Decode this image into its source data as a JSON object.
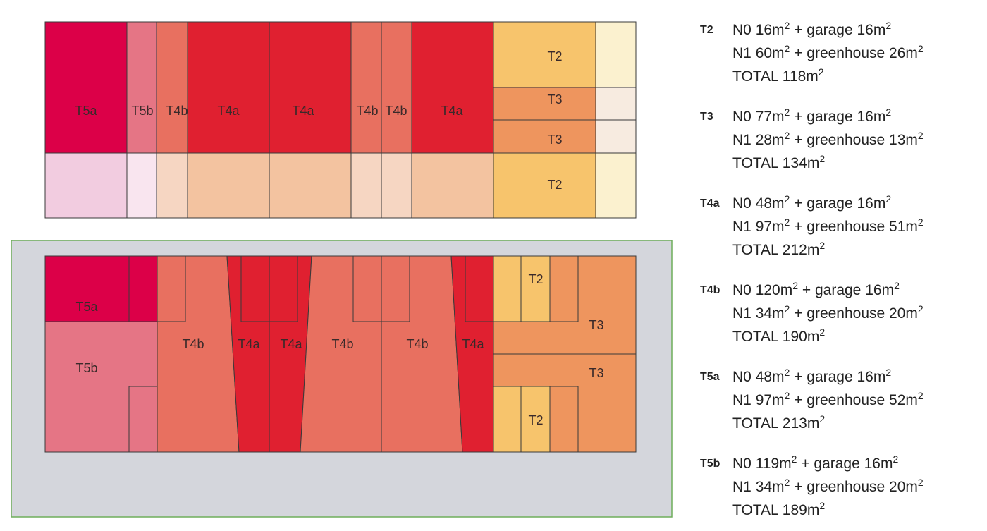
{
  "legend": [
    {
      "code": "T2",
      "n0": "16",
      "n0_extra": "garage 16",
      "n1": "60",
      "n1_extra": "greenhouse 26",
      "total": "118"
    },
    {
      "code": "T3",
      "n0": "77",
      "n0_extra": "garage 16",
      "n1": "28",
      "n1_extra": "greenhouse 13",
      "total": "134"
    },
    {
      "code": "T4a",
      "n0": "48",
      "n0_extra": "garage 16",
      "n1": "97",
      "n1_extra": "greenhouse 51",
      "total": "212"
    },
    {
      "code": "T4b",
      "n0": "120",
      "n0_extra": "garage 16",
      "n1": "34",
      "n1_extra": "greenhouse 20",
      "total": "190"
    },
    {
      "code": "T5a",
      "n0": "48",
      "n0_extra": "garage 16",
      "n1": "97",
      "n1_extra": "greenhouse 52",
      "total": "213"
    },
    {
      "code": "T5b",
      "n0": "119",
      "n0_extra": "garage 16",
      "n1": "34",
      "n1_extra": "greenhouse 20",
      "total": "189"
    }
  ],
  "labels": {
    "n0": "N0 ",
    "n1": "N1 ",
    "total": "TOTAL ",
    "unit": "m",
    "exp": "2",
    "plus": " + "
  },
  "plan_top": {
    "units": [
      "T5a",
      "T5b",
      "T4b",
      "T4a",
      "T4a",
      "T4b",
      "T4b",
      "T4a",
      "T2",
      "T3",
      "T3",
      "T2"
    ]
  },
  "plan_bottom": {
    "units": [
      "T5a",
      "T5b",
      "T4b",
      "T4a",
      "T4a",
      "T4b",
      "T4b",
      "T4a",
      "T2",
      "T3",
      "T3",
      "T2"
    ]
  },
  "colors": {
    "T5a": "#dc0048",
    "T5b": "#e57585",
    "T4a": "#e02030",
    "T4b": "#e87060",
    "T3": "#ee955e",
    "T2": "#f7c46c",
    "grey_bg": "#d4d6dc",
    "frame": "#6fae5b"
  }
}
